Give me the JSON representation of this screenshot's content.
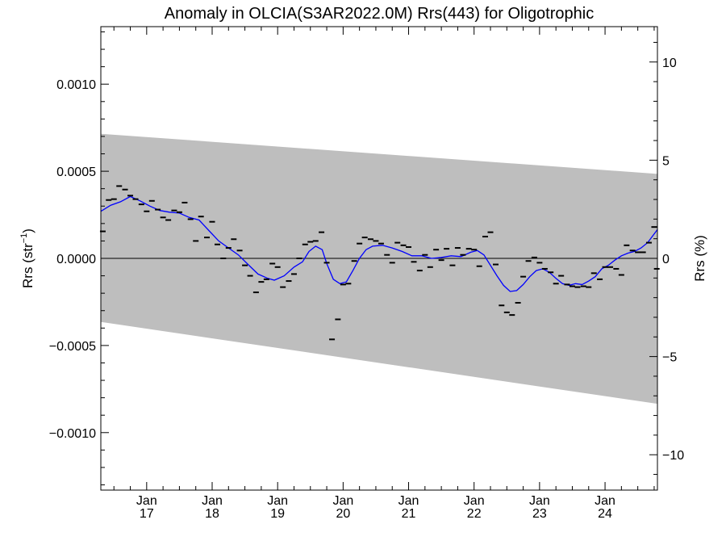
{
  "chart_data": {
    "type": "scatter",
    "title": "Anomaly in OLCIA(S3AR2022.0M) Rrs(443) for Oligotrophic",
    "ylabel_left_base": "Rrs (str",
    "ylabel_left_sup": "−1",
    "ylabel_left_end": ")",
    "ylabel_right": "Rrs (%)",
    "xlim": [
      2016.3,
      2024.8
    ],
    "ylim_left": [
      -0.00133,
      0.00133
    ],
    "ylim_right": [
      -11.8,
      11.8
    ],
    "x_ticks": [
      {
        "x": 2017.0,
        "month": "Jan",
        "year": "17"
      },
      {
        "x": 2018.0,
        "month": "Jan",
        "year": "18"
      },
      {
        "x": 2019.0,
        "month": "Jan",
        "year": "19"
      },
      {
        "x": 2020.0,
        "month": "Jan",
        "year": "20"
      },
      {
        "x": 2021.0,
        "month": "Jan",
        "year": "21"
      },
      {
        "x": 2022.0,
        "month": "Jan",
        "year": "22"
      },
      {
        "x": 2023.0,
        "month": "Jan",
        "year": "23"
      },
      {
        "x": 2024.0,
        "month": "Jan",
        "year": "24"
      }
    ],
    "y_ticks_left": [
      {
        "v": 0.001,
        "label": "0.0010"
      },
      {
        "v": 0.0005,
        "label": "0.0005"
      },
      {
        "v": 0.0,
        "label": "0.0000"
      },
      {
        "v": -0.0005,
        "label": "−0.0005"
      },
      {
        "v": -0.001,
        "label": "−0.0010"
      }
    ],
    "y_ticks_right": [
      {
        "v": 10,
        "label": "10"
      },
      {
        "v": 5,
        "label": "5"
      },
      {
        "v": 0,
        "label": "0"
      },
      {
        "v": -5,
        "label": "−5"
      },
      {
        "v": -10,
        "label": "−10"
      }
    ],
    "band": {
      "upper": [
        [
          2016.3,
          0.000715
        ],
        [
          2024.8,
          0.000485
        ]
      ],
      "lower": [
        [
          2016.3,
          -0.000365
        ],
        [
          2024.8,
          -0.000835
        ]
      ],
      "color": "#bebebe"
    },
    "zero_line": 0,
    "points": [
      [
        2016.33,
        0.000155
      ],
      [
        2016.42,
        0.000335
      ],
      [
        2016.5,
        0.00034
      ],
      [
        2016.58,
        0.000415
      ],
      [
        2016.67,
        0.000395
      ],
      [
        2016.75,
        0.00036
      ],
      [
        2016.83,
        0.00034
      ],
      [
        2016.92,
        0.00031
      ],
      [
        2017.0,
        0.00027
      ],
      [
        2017.08,
        0.00033
      ],
      [
        2017.17,
        0.00028
      ],
      [
        2017.25,
        0.000235
      ],
      [
        2017.33,
        0.00022
      ],
      [
        2017.42,
        0.000275
      ],
      [
        2017.5,
        0.000265
      ],
      [
        2017.58,
        0.00032
      ],
      [
        2017.67,
        0.000225
      ],
      [
        2017.75,
        0.0001
      ],
      [
        2017.83,
        0.00024
      ],
      [
        2017.92,
        0.00012
      ],
      [
        2018.0,
        0.00021
      ],
      [
        2018.08,
        8e-05
      ],
      [
        2018.17,
        0.0
      ],
      [
        2018.25,
        6e-05
      ],
      [
        2018.33,
        0.00011
      ],
      [
        2018.42,
        4.5e-05
      ],
      [
        2018.5,
        -4e-05
      ],
      [
        2018.58,
        -0.0001
      ],
      [
        2018.67,
        -0.000195
      ],
      [
        2018.75,
        -0.000135
      ],
      [
        2018.83,
        -0.00012
      ],
      [
        2018.92,
        -3e-05
      ],
      [
        2019.0,
        -5e-05
      ],
      [
        2019.08,
        -0.000165
      ],
      [
        2019.17,
        -0.00013
      ],
      [
        2019.25,
        -9e-05
      ],
      [
        2019.33,
        0.0
      ],
      [
        2019.42,
        8e-05
      ],
      [
        2019.5,
        9.5e-05
      ],
      [
        2019.58,
        0.0001
      ],
      [
        2019.67,
        0.00015
      ],
      [
        2019.75,
        -2.5e-05
      ],
      [
        2019.83,
        -0.000465
      ],
      [
        2019.92,
        -0.00035
      ],
      [
        2020.0,
        -0.00015
      ],
      [
        2020.08,
        -0.000145
      ],
      [
        2020.17,
        -1.5e-05
      ],
      [
        2020.25,
        8.5e-05
      ],
      [
        2020.33,
        0.00012
      ],
      [
        2020.42,
        0.00011
      ],
      [
        2020.5,
        0.0001
      ],
      [
        2020.58,
        8.5e-05
      ],
      [
        2020.67,
        2e-05
      ],
      [
        2020.75,
        -2.5e-05
      ],
      [
        2020.83,
        9e-05
      ],
      [
        2020.92,
        7.5e-05
      ],
      [
        2021.0,
        6.5e-05
      ],
      [
        2021.08,
        -2e-05
      ],
      [
        2021.17,
        -7e-05
      ],
      [
        2021.25,
        2e-05
      ],
      [
        2021.33,
        -5e-05
      ],
      [
        2021.42,
        5e-05
      ],
      [
        2021.5,
        -1e-05
      ],
      [
        2021.58,
        5.5e-05
      ],
      [
        2021.67,
        -4e-05
      ],
      [
        2021.75,
        6e-05
      ],
      [
        2021.83,
        2e-05
      ],
      [
        2021.92,
        5.5e-05
      ],
      [
        2022.0,
        5e-05
      ],
      [
        2022.08,
        -4.5e-05
      ],
      [
        2022.17,
        0.000125
      ],
      [
        2022.25,
        0.00015
      ],
      [
        2022.33,
        -3.5e-05
      ],
      [
        2022.42,
        -0.00027
      ],
      [
        2022.5,
        -0.00031
      ],
      [
        2022.58,
        -0.000325
      ],
      [
        2022.67,
        -0.000255
      ],
      [
        2022.75,
        -0.000105
      ],
      [
        2022.83,
        -1.5e-05
      ],
      [
        2022.92,
        5e-06
      ],
      [
        2023.0,
        -2.5e-05
      ],
      [
        2023.08,
        -6e-05
      ],
      [
        2023.17,
        -8e-05
      ],
      [
        2023.25,
        -0.000145
      ],
      [
        2023.33,
        -0.0001
      ],
      [
        2023.42,
        -0.00015
      ],
      [
        2023.5,
        -0.00016
      ],
      [
        2023.58,
        -0.000165
      ],
      [
        2023.67,
        -0.00016
      ],
      [
        2023.75,
        -0.000165
      ],
      [
        2023.83,
        -8.5e-05
      ],
      [
        2023.92,
        -0.00012
      ],
      [
        2024.0,
        -5e-05
      ],
      [
        2024.08,
        -5e-05
      ],
      [
        2024.17,
        -6e-05
      ],
      [
        2024.25,
        -9.5e-05
      ],
      [
        2024.33,
        7.5e-05
      ],
      [
        2024.42,
        4.5e-05
      ],
      [
        2024.5,
        3.5e-05
      ],
      [
        2024.58,
        3.5e-05
      ],
      [
        2024.67,
        9e-05
      ],
      [
        2024.75,
        0.00018
      ],
      [
        2024.79,
        -6e-05
      ]
    ],
    "smooth": [
      [
        2016.3,
        0.00027
      ],
      [
        2016.45,
        0.000305
      ],
      [
        2016.6,
        0.000325
      ],
      [
        2016.75,
        0.000355
      ],
      [
        2016.9,
        0.00033
      ],
      [
        2017.05,
        0.0003
      ],
      [
        2017.2,
        0.000275
      ],
      [
        2017.35,
        0.000265
      ],
      [
        2017.5,
        0.00026
      ],
      [
        2017.65,
        0.000235
      ],
      [
        2017.8,
        0.00022
      ],
      [
        2017.95,
        0.00016
      ],
      [
        2018.1,
        0.0001
      ],
      [
        2018.25,
        6e-05
      ],
      [
        2018.4,
        2e-05
      ],
      [
        2018.55,
        -3.5e-05
      ],
      [
        2018.7,
        -9e-05
      ],
      [
        2018.85,
        -0.000115
      ],
      [
        2018.95,
        -0.000125
      ],
      [
        2019.1,
        -0.0001
      ],
      [
        2019.25,
        -5e-05
      ],
      [
        2019.38,
        -2e-05
      ],
      [
        2019.48,
        4e-05
      ],
      [
        2019.58,
        7e-05
      ],
      [
        2019.68,
        5e-05
      ],
      [
        2019.75,
        -3e-05
      ],
      [
        2019.85,
        -0.00012
      ],
      [
        2019.95,
        -0.000145
      ],
      [
        2020.05,
        -0.000135
      ],
      [
        2020.15,
        -7e-05
      ],
      [
        2020.25,
        0.0
      ],
      [
        2020.35,
        5e-05
      ],
      [
        2020.45,
        7e-05
      ],
      [
        2020.6,
        7.5e-05
      ],
      [
        2020.75,
        6e-05
      ],
      [
        2020.9,
        4e-05
      ],
      [
        2021.05,
        1.5e-05
      ],
      [
        2021.2,
        1.5e-05
      ],
      [
        2021.35,
        0.0
      ],
      [
        2021.5,
        5e-06
      ],
      [
        2021.65,
        1.5e-05
      ],
      [
        2021.8,
        1e-05
      ],
      [
        2021.95,
        3.5e-05
      ],
      [
        2022.05,
        4.5e-05
      ],
      [
        2022.15,
        2e-05
      ],
      [
        2022.25,
        -4e-05
      ],
      [
        2022.35,
        -0.0001
      ],
      [
        2022.45,
        -0.000155
      ],
      [
        2022.55,
        -0.00019
      ],
      [
        2022.65,
        -0.000185
      ],
      [
        2022.75,
        -0.00015
      ],
      [
        2022.85,
        -0.000105
      ],
      [
        2022.95,
        -7e-05
      ],
      [
        2023.05,
        -6e-05
      ],
      [
        2023.15,
        -8e-05
      ],
      [
        2023.25,
        -0.000115
      ],
      [
        2023.35,
        -0.000145
      ],
      [
        2023.45,
        -0.000155
      ],
      [
        2023.55,
        -0.000145
      ],
      [
        2023.65,
        -0.00015
      ],
      [
        2023.75,
        -0.00013
      ],
      [
        2023.85,
        -0.000105
      ],
      [
        2023.95,
        -6e-05
      ],
      [
        2024.05,
        -4e-05
      ],
      [
        2024.15,
        -1e-05
      ],
      [
        2024.25,
        1.5e-05
      ],
      [
        2024.35,
        3e-05
      ],
      [
        2024.45,
        4e-05
      ],
      [
        2024.55,
        6e-05
      ],
      [
        2024.65,
        9e-05
      ],
      [
        2024.72,
        0.000125
      ],
      [
        2024.8,
        0.000165
      ]
    ],
    "smooth_color": "#0000ff",
    "grid": false,
    "legend": "none"
  }
}
